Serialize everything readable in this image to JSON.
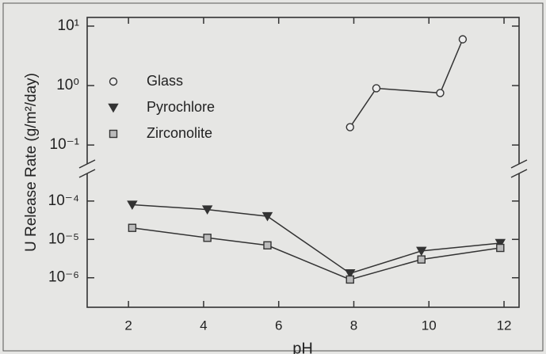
{
  "chart_data": {
    "type": "line",
    "x_label": "pH",
    "y_label": "U Release Rate (g/m²/day)",
    "xlim": [
      0.9,
      12.4
    ],
    "xticks": [
      2,
      4,
      6,
      8,
      10,
      12
    ],
    "log_scale": true,
    "ylim_upper": [
      0.04,
      14
    ],
    "yticks_upper": [
      {
        "value": 10,
        "label": "10¹"
      },
      {
        "value": 1,
        "label": "10⁰"
      },
      {
        "value": 0.1,
        "label": "10⁻¹"
      }
    ],
    "ylim_lower": [
      1.7e-07,
      0.0005
    ],
    "yticks_lower": [
      {
        "value": 0.0001,
        "label": "10⁻⁴"
      },
      {
        "value": 1e-05,
        "label": "10⁻⁵"
      },
      {
        "value": 1e-06,
        "label": "10⁻⁶"
      }
    ],
    "legend": "upper left",
    "series": [
      {
        "name": "Glass",
        "segment": "upper",
        "marker": "circle-open",
        "color": "#333333",
        "x": [
          7.9,
          8.6,
          10.3,
          10.9
        ],
        "values": [
          0.2,
          0.9,
          0.75,
          6
        ]
      },
      {
        "name": "Pyrochlore",
        "segment": "lower",
        "marker": "triangle-down",
        "color": "#333333",
        "x": [
          2.1,
          4.1,
          5.7,
          7.9,
          9.8,
          11.9
        ],
        "values": [
          8e-05,
          6e-05,
          4e-05,
          1.3e-06,
          5e-06,
          8e-06
        ]
      },
      {
        "name": "Zirconolite",
        "segment": "lower",
        "marker": "square",
        "color": "#333333",
        "x": [
          2.1,
          4.1,
          5.7,
          7.9,
          9.8,
          11.9
        ],
        "values": [
          2e-05,
          1.1e-05,
          7e-06,
          9e-07,
          3e-06,
          6e-06
        ]
      }
    ]
  }
}
